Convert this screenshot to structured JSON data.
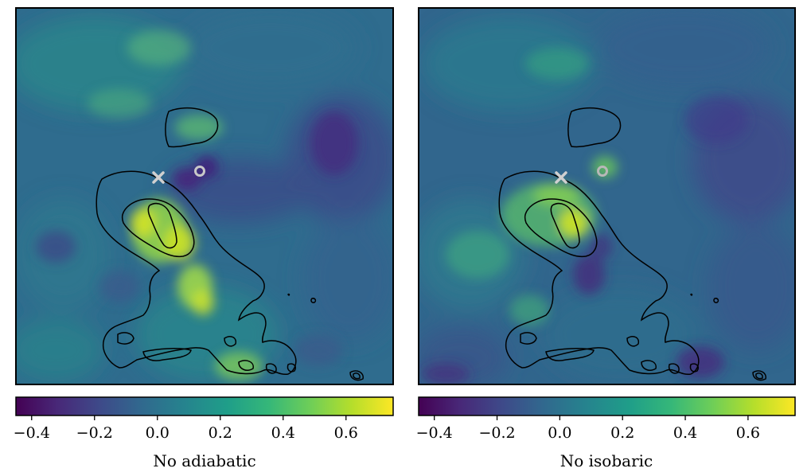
{
  "chart_data": [
    {
      "type": "heatmap",
      "colormap": "viridis",
      "colorbar": {
        "label": "No adiabatic",
        "range": [
          -0.45,
          0.75
        ],
        "ticks": [
          -0.4,
          -0.2,
          0.0,
          0.2,
          0.4,
          0.6
        ],
        "tick_labels": [
          "−0.4",
          "−0.2",
          "0.0",
          "0.2",
          "0.4",
          "0.6"
        ],
        "orientation": "horizontal"
      },
      "markers": [
        {
          "symbol": "x",
          "color": "#d0d0d0"
        },
        {
          "symbol": "o",
          "color": "#c8c8c8"
        }
      ],
      "contours": {
        "color": "#000000",
        "levels": 3
      }
    },
    {
      "type": "heatmap",
      "colormap": "viridis",
      "colorbar": {
        "label": "No isobaric",
        "range": [
          -0.45,
          0.75
        ],
        "ticks": [
          -0.4,
          -0.2,
          0.0,
          0.2,
          0.4,
          0.6
        ],
        "tick_labels": [
          "−0.4",
          "−0.2",
          "0.0",
          "0.2",
          "0.4",
          "0.6"
        ],
        "orientation": "horizontal"
      },
      "markers": [
        {
          "symbol": "x",
          "color": "#d0d0d0"
        },
        {
          "symbol": "o",
          "color": "#b8b8b8"
        }
      ],
      "contours": {
        "color": "#000000",
        "levels": 3
      }
    }
  ],
  "colors": {
    "viridis": [
      "#440154",
      "#482878",
      "#3e4989",
      "#31688e",
      "#26828e",
      "#1f9e89",
      "#35b779",
      "#6ece58",
      "#b5de2b",
      "#fde725"
    ],
    "contour": "#000000"
  }
}
